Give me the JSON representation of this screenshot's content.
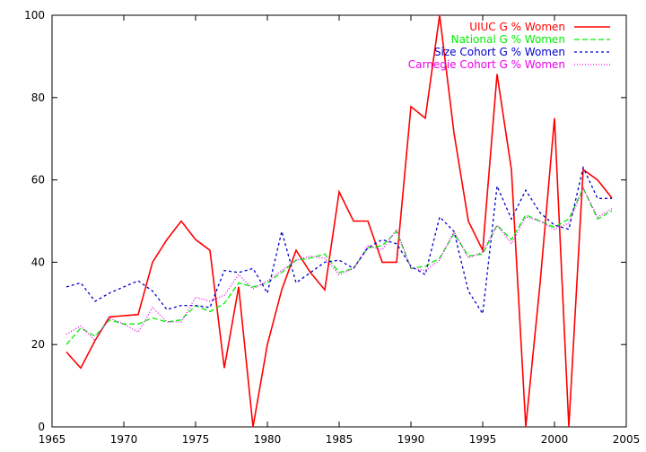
{
  "chart_data": {
    "type": "line",
    "xlim": [
      1965,
      2005
    ],
    "ylim": [
      0,
      100
    ],
    "x_ticks": [
      1965,
      1970,
      1975,
      1980,
      1985,
      1990,
      1995,
      2000,
      2005
    ],
    "y_ticks": [
      0,
      20,
      40,
      60,
      80,
      100
    ],
    "legend_position": "top-right",
    "grid": false,
    "x": [
      1966,
      1967,
      1968,
      1969,
      1970,
      1971,
      1972,
      1973,
      1974,
      1975,
      1976,
      1977,
      1978,
      1979,
      1980,
      1981,
      1982,
      1983,
      1984,
      1985,
      1986,
      1987,
      1988,
      1989,
      1990,
      1991,
      1992,
      1993,
      1994,
      1995,
      1996,
      1997,
      1998,
      1999,
      2000,
      2001,
      2002,
      2003,
      2004
    ],
    "series": [
      {
        "name": "UIUC G % Women",
        "color": "#ff0000",
        "dash": "",
        "values": [
          18.2,
          14.3,
          21.0,
          26.7,
          27.0,
          27.3,
          40.0,
          45.5,
          50.0,
          45.5,
          42.9,
          14.3,
          34.0,
          0.0,
          20.0,
          33.3,
          42.9,
          37.5,
          33.3,
          57.1,
          50.0,
          50.0,
          40.0,
          40.0,
          77.8,
          75.0,
          100.0,
          71.4,
          50.0,
          42.9,
          85.7,
          62.5,
          0.0,
          35.0,
          75.0,
          0.0,
          62.5,
          60.0,
          55.6
        ]
      },
      {
        "name": "National G % Women",
        "color": "#00ee00",
        "dash": "6,3",
        "values": [
          20.0,
          24.0,
          22.0,
          26.0,
          25.0,
          25.0,
          26.5,
          25.5,
          26.0,
          29.5,
          28.0,
          30.0,
          35.0,
          34.0,
          35.0,
          37.5,
          40.5,
          41.0,
          42.0,
          37.5,
          38.5,
          43.5,
          44.0,
          47.5,
          38.5,
          39.0,
          41.0,
          47.0,
          41.5,
          42.0,
          49.0,
          45.5,
          51.5,
          50.0,
          48.5,
          50.5,
          58.0,
          50.5,
          52.5
        ]
      },
      {
        "name": "Size Cohort G % Women",
        "color": "#0000cc",
        "dash": "3,3",
        "values": [
          34.0,
          35.0,
          30.5,
          32.5,
          34.0,
          35.5,
          33.0,
          28.5,
          29.5,
          29.5,
          29.0,
          38.0,
          37.5,
          38.5,
          32.5,
          47.5,
          35.0,
          37.5,
          40.0,
          40.5,
          38.5,
          43.5,
          45.5,
          44.5,
          39.0,
          37.0,
          51.0,
          47.5,
          33.0,
          27.5,
          58.5,
          50.5,
          57.5,
          52.0,
          49.0,
          48.0,
          63.0,
          55.5,
          55.5
        ]
      },
      {
        "name": "Carnegie Cohort G % Women",
        "color": "#ee00ee",
        "dash": "1,2",
        "values": [
          22.5,
          24.5,
          21.0,
          26.5,
          25.0,
          23.0,
          29.0,
          25.5,
          25.5,
          31.5,
          30.5,
          32.0,
          37.0,
          33.5,
          35.5,
          38.0,
          40.5,
          41.5,
          41.0,
          37.0,
          38.5,
          44.0,
          43.0,
          48.0,
          38.5,
          38.0,
          40.5,
          47.5,
          41.0,
          42.5,
          49.0,
          44.5,
          51.0,
          50.0,
          48.0,
          49.5,
          58.0,
          51.0,
          53.0
        ]
      }
    ]
  }
}
